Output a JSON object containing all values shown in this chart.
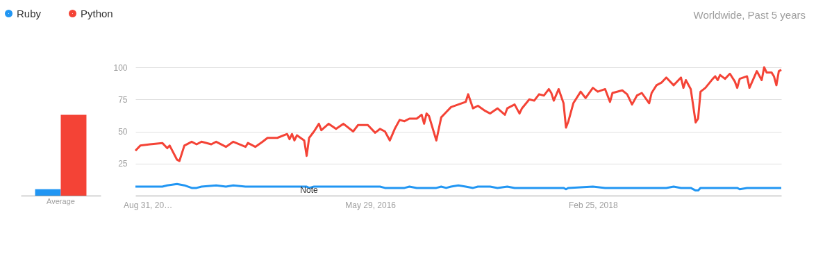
{
  "chart_data": [
    {
      "type": "bar",
      "categories": [
        "Average"
      ],
      "ylim": [
        0,
        100
      ],
      "tick_labels": "x",
      "grid": false,
      "legend": false,
      "series": [
        {
          "color": "#2196f3",
          "values": [
            5
          ]
        },
        {
          "color": "#f44336",
          "values": [
            63
          ]
        }
      ]
    },
    {
      "type": "line",
      "ylim": [
        0,
        100
      ],
      "yticks": [
        25,
        50,
        75,
        100
      ],
      "grid": "y",
      "legend": "top left",
      "marker": "none",
      "line_style": "solid",
      "xlim": [
        "2014-07-27",
        "2019-08-18"
      ],
      "xticks": [
        {
          "value": "2014-08-31",
          "label": "Aug 31, 20…"
        },
        {
          "value": "2016-05-29",
          "label": "May 29, 2016"
        },
        {
          "value": "2018-02-25",
          "label": "Feb 25, 2018"
        }
      ],
      "annotations": [
        "Worldwide, Past 5 years",
        "Note"
      ],
      "series": [
        {
          "name": "Ruby",
          "color": "#2196f3",
          "x": [
            "2014-07-27",
            "2014-10-12",
            "2014-10-26",
            "2014-11-23",
            "2014-12-14",
            "2015-01-04",
            "2015-01-18",
            "2015-02-01",
            "2015-03-15",
            "2015-04-12",
            "2015-05-03",
            "2015-06-07",
            "2015-11-29",
            "2015-12-06",
            "2015-12-20",
            "2016-06-26",
            "2016-07-10",
            "2016-09-04",
            "2016-09-18",
            "2016-10-09",
            "2016-12-04",
            "2016-12-18",
            "2017-01-01",
            "2017-01-15",
            "2017-02-05",
            "2017-02-26",
            "2017-03-19",
            "2017-04-02",
            "2017-05-07",
            "2017-05-28",
            "2017-06-25",
            "2017-07-16",
            "2017-12-03",
            "2017-12-10",
            "2017-12-17",
            "2018-02-25",
            "2018-04-01",
            "2018-09-23",
            "2018-10-14",
            "2018-11-04",
            "2018-12-02",
            "2018-12-16",
            "2018-12-23",
            "2018-12-30",
            "2019-04-14",
            "2019-04-21",
            "2019-05-12",
            "2019-08-18"
          ],
          "values": [
            7,
            7,
            8,
            9,
            8,
            6,
            6,
            7,
            8,
            7,
            8,
            7,
            7,
            6,
            7,
            7,
            6,
            6,
            7,
            6,
            6,
            7,
            6,
            7,
            8,
            7,
            6,
            7,
            7,
            6,
            7,
            6,
            6,
            5,
            6,
            7,
            6,
            6,
            7,
            6,
            6,
            4,
            4,
            6,
            6,
            5,
            6,
            6
          ]
        },
        {
          "name": "Python",
          "color": "#f44336",
          "x": [
            "2014-07-27",
            "2014-08-10",
            "2014-09-07",
            "2014-10-12",
            "2014-10-26",
            "2014-11-02",
            "2014-11-23",
            "2014-11-30",
            "2014-12-14",
            "2015-01-04",
            "2015-01-18",
            "2015-02-01",
            "2015-03-01",
            "2015-03-15",
            "2015-04-12",
            "2015-05-03",
            "2015-06-07",
            "2015-06-14",
            "2015-07-05",
            "2015-07-26",
            "2015-08-09",
            "2015-09-06",
            "2015-10-04",
            "2015-10-11",
            "2015-10-18",
            "2015-10-25",
            "2015-11-01",
            "2015-11-22",
            "2015-11-29",
            "2015-12-06",
            "2015-12-20",
            "2016-01-03",
            "2016-01-10",
            "2016-01-31",
            "2016-02-21",
            "2016-03-13",
            "2016-04-10",
            "2016-04-24",
            "2016-05-22",
            "2016-06-12",
            "2016-06-26",
            "2016-07-10",
            "2016-07-24",
            "2016-08-07",
            "2016-08-21",
            "2016-09-04",
            "2016-09-18",
            "2016-10-09",
            "2016-10-23",
            "2016-10-30",
            "2016-11-06",
            "2016-11-13",
            "2016-12-04",
            "2016-12-18",
            "2017-01-01",
            "2017-01-15",
            "2017-02-05",
            "2017-02-26",
            "2017-03-05",
            "2017-03-19",
            "2017-04-02",
            "2017-04-23",
            "2017-05-07",
            "2017-05-28",
            "2017-06-18",
            "2017-06-25",
            "2017-07-16",
            "2017-07-30",
            "2017-08-06",
            "2017-08-27",
            "2017-09-10",
            "2017-09-24",
            "2017-10-08",
            "2017-10-22",
            "2017-10-29",
            "2017-11-05",
            "2017-11-19",
            "2017-12-03",
            "2017-12-10",
            "2017-12-17",
            "2017-12-31",
            "2018-01-21",
            "2018-02-04",
            "2018-02-25",
            "2018-03-11",
            "2018-04-01",
            "2018-04-15",
            "2018-04-22",
            "2018-05-20",
            "2018-06-03",
            "2018-06-17",
            "2018-07-01",
            "2018-07-15",
            "2018-08-05",
            "2018-08-12",
            "2018-08-26",
            "2018-09-09",
            "2018-09-23",
            "2018-10-14",
            "2018-11-04",
            "2018-11-11",
            "2018-11-18",
            "2018-12-02",
            "2018-12-16",
            "2018-12-23",
            "2018-12-30",
            "2019-01-13",
            "2019-02-03",
            "2019-02-10",
            "2019-02-17",
            "2019-02-24",
            "2019-03-10",
            "2019-03-24",
            "2019-04-07",
            "2019-04-14",
            "2019-04-21",
            "2019-05-12",
            "2019-05-19",
            "2019-06-09",
            "2019-06-23",
            "2019-06-30",
            "2019-07-07",
            "2019-07-21",
            "2019-07-28",
            "2019-08-04",
            "2019-08-11",
            "2019-08-18"
          ],
          "values": [
            35,
            39,
            40,
            41,
            37,
            39,
            28,
            27,
            39,
            42,
            40,
            42,
            40,
            42,
            38,
            42,
            38,
            41,
            38,
            42,
            45,
            45,
            48,
            44,
            48,
            43,
            47,
            43,
            31,
            45,
            50,
            56,
            51,
            56,
            52,
            56,
            50,
            55,
            55,
            49,
            52,
            50,
            43,
            52,
            59,
            58,
            60,
            60,
            63,
            56,
            64,
            62,
            43,
            61,
            65,
            69,
            71,
            73,
            79,
            68,
            70,
            66,
            64,
            68,
            63,
            68,
            71,
            64,
            68,
            75,
            74,
            79,
            78,
            83,
            80,
            74,
            83,
            72,
            53,
            58,
            72,
            81,
            76,
            84,
            81,
            83,
            73,
            80,
            82,
            79,
            71,
            78,
            80,
            72,
            80,
            86,
            88,
            92,
            86,
            92,
            84,
            90,
            83,
            57,
            60,
            81,
            84,
            91,
            93,
            90,
            94,
            91,
            95,
            89,
            84,
            91,
            93,
            84,
            97,
            90,
            100,
            96,
            96,
            93,
            86,
            97,
            98
          ]
        }
      ]
    }
  ]
}
